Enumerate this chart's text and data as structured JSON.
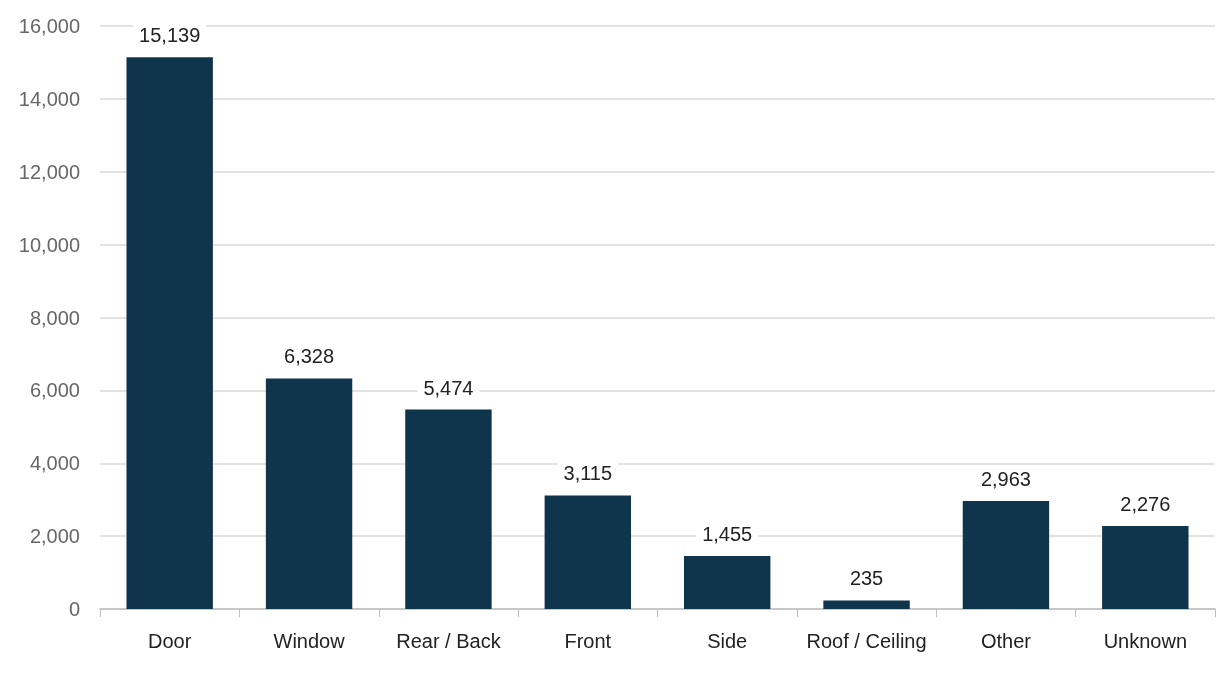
{
  "chart_data": {
    "type": "bar",
    "categories": [
      "Door",
      "Window",
      "Rear / Back",
      "Front",
      "Side",
      "Roof / Ceiling",
      "Other",
      "Unknown"
    ],
    "values": [
      15139,
      6328,
      5474,
      3115,
      1455,
      235,
      2963,
      2276
    ],
    "value_labels": [
      "15,139",
      "6,328",
      "5,474",
      "3,115",
      "1,455",
      "235",
      "2,963",
      "2,276"
    ],
    "color": "#0e354b",
    "ylim": [
      0,
      16000
    ],
    "yticks": [
      {
        "value": 0,
        "label": "0"
      },
      {
        "value": 2000,
        "label": "2,000"
      },
      {
        "value": 4000,
        "label": "4,000"
      },
      {
        "value": 6000,
        "label": "6,000"
      },
      {
        "value": 8000,
        "label": "8,000"
      },
      {
        "value": 10000,
        "label": "10,000"
      },
      {
        "value": 12000,
        "label": "12,000"
      },
      {
        "value": 14000,
        "label": "14,000"
      },
      {
        "value": 16000,
        "label": "16,000"
      }
    ],
    "grid": "y"
  }
}
